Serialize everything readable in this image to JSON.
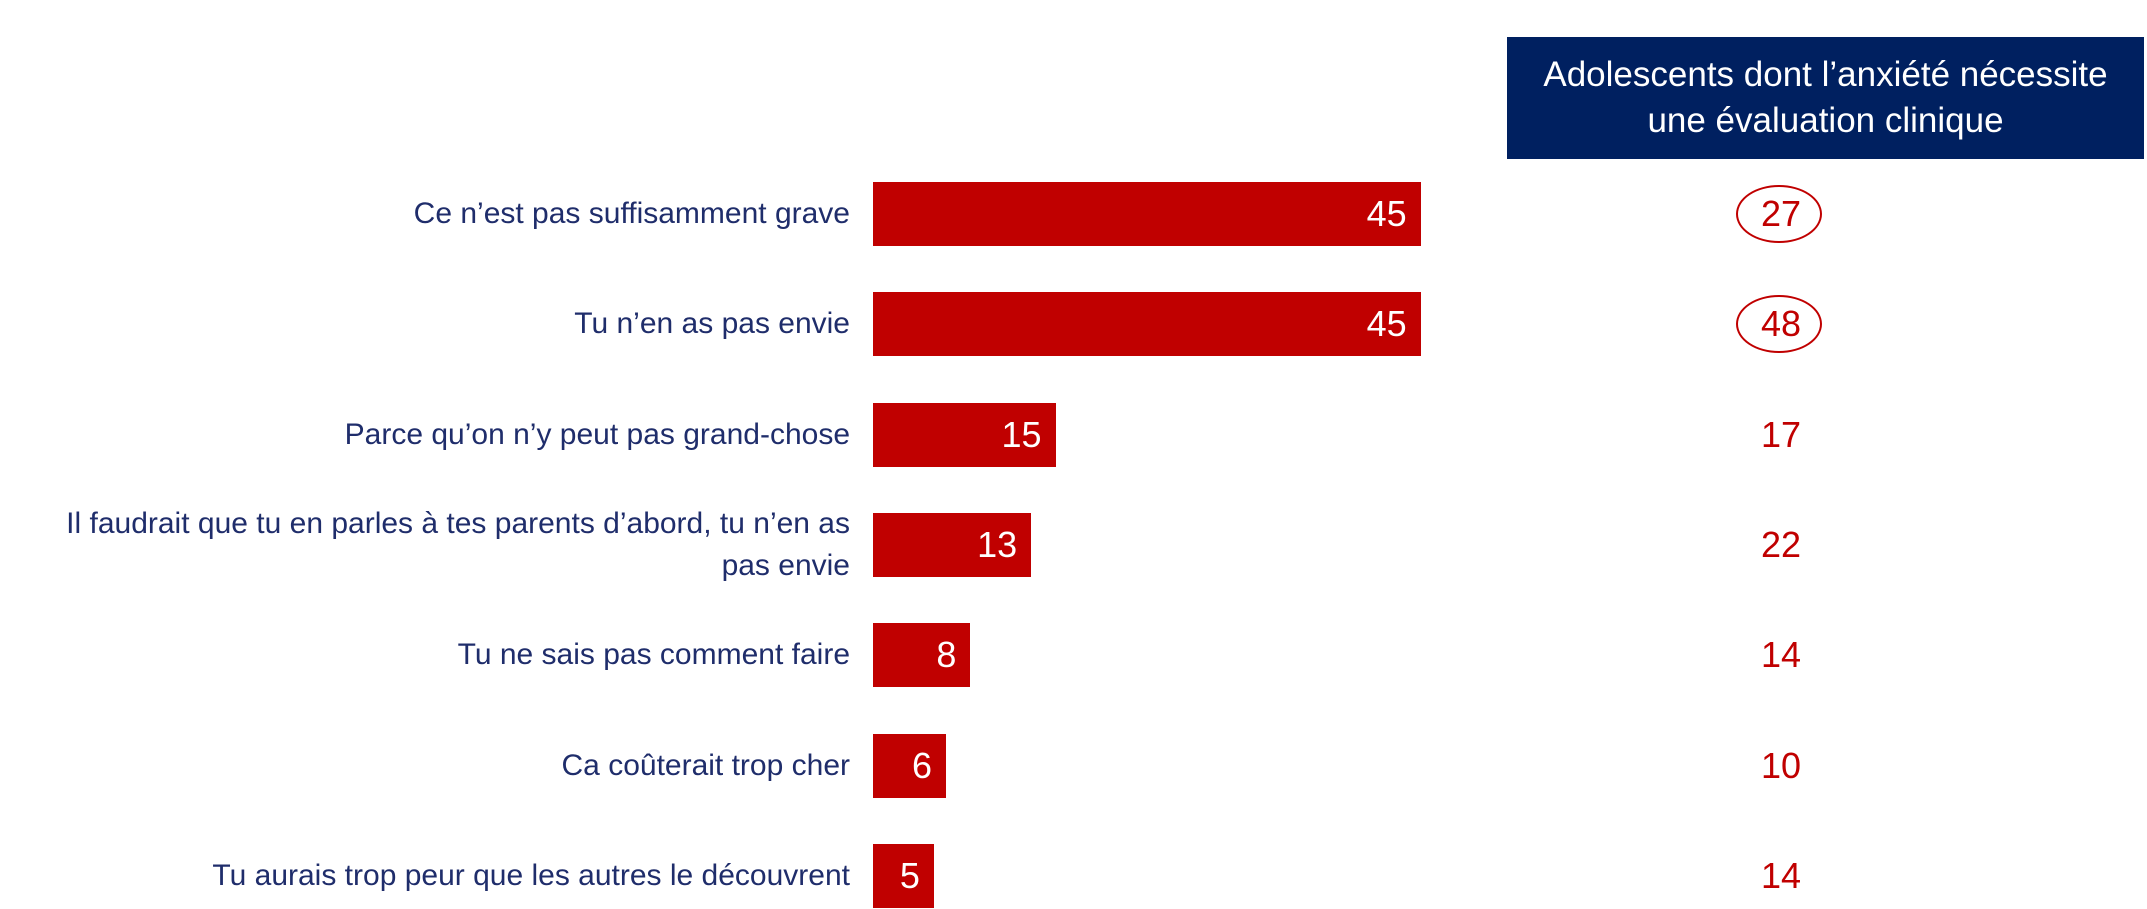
{
  "chart_data": {
    "type": "bar",
    "orientation": "horizontal",
    "categories": [
      "Ce n’est pas suffisamment grave",
      "Tu n’en as pas envie",
      "Parce qu’on n’y peut pas grand-chose",
      "Il faudrait que tu en parles à tes parents d’abord, tu n’en as pas envie",
      "Tu ne sais pas comment faire",
      "Ca coûterait trop cher",
      "Tu aurais trop peur que les autres le découvrent"
    ],
    "values": [
      45,
      45,
      15,
      13,
      8,
      6,
      5
    ],
    "color": "#c00000",
    "column_title": "Adolescents dont l’anxiété nécessite une évaluation clinique",
    "column_values": [
      27,
      48,
      17,
      22,
      14,
      10,
      14
    ],
    "column_highlight": [
      true,
      true,
      false,
      false,
      false,
      false,
      false
    ]
  }
}
